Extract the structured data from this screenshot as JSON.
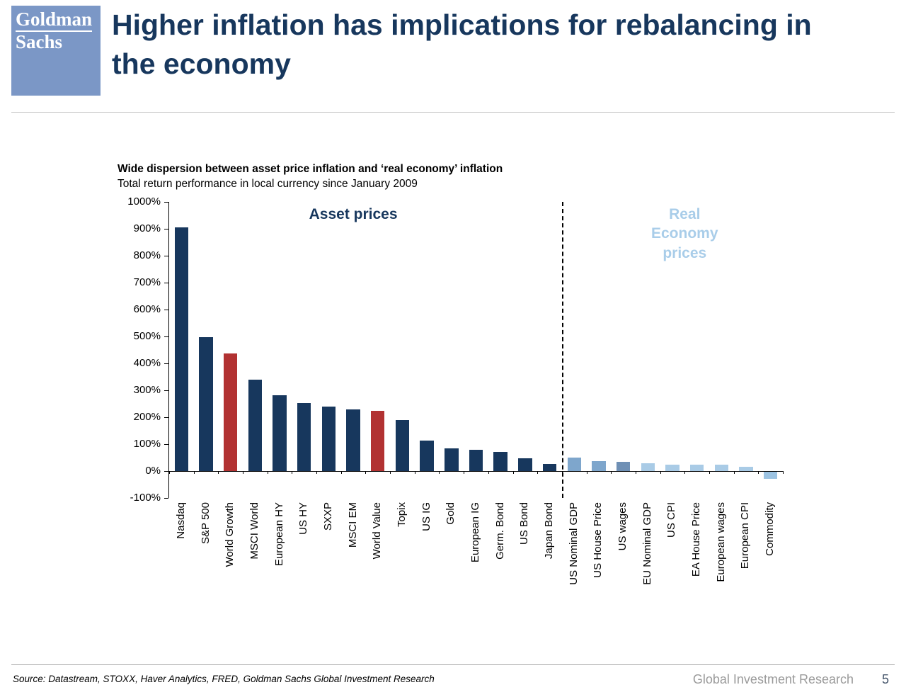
{
  "header": {
    "logo_line1": "Goldman",
    "logo_line2": "Sachs",
    "title": "Higher inflation has implications for rebalancing in the economy"
  },
  "chart_data": {
    "type": "bar",
    "title": "Wide dispersion between asset price inflation and ‘real economy’ inflation",
    "subtitle": "Total return performance in local currency since January 2009",
    "ylim": [
      -100,
      1000
    ],
    "ytick_step": 100,
    "ytick_suffix": "%",
    "grid": false,
    "asset_group_count": 16,
    "group_labels": {
      "assets": "Asset prices",
      "real": "Real Economy\nprices"
    },
    "categories": [
      "Nasdaq",
      "S&P 500",
      "World Growth",
      "MSCI World",
      "European HY",
      "US HY",
      "SXXP",
      "MSCI EM",
      "World Value",
      "Topix",
      "US IG",
      "Gold",
      "European IG",
      "Germ. Bond",
      "US Bond",
      "Japan Bond",
      "US Nominal GDP",
      "US House Price",
      "US wages",
      "EU Nominal GDP",
      "US CPI",
      "EA House Price",
      "European wages",
      "European CPI",
      "Commodity"
    ],
    "values": [
      905,
      497,
      438,
      340,
      281,
      252,
      240,
      228,
      224,
      190,
      112,
      83,
      78,
      72,
      48,
      27,
      50,
      38,
      33,
      28,
      25,
      25,
      25,
      15,
      -30
    ],
    "colors": [
      "#17375d",
      "#17375d",
      "#b23232",
      "#17375d",
      "#17375d",
      "#17375d",
      "#17375d",
      "#17375d",
      "#b23232",
      "#17375d",
      "#17375d",
      "#17375d",
      "#17375d",
      "#17375d",
      "#17375d",
      "#17375d",
      "#7ea6cc",
      "#7ea6cc",
      "#6f90b5",
      "#a9cbe6",
      "#a9cbe6",
      "#a9cbe6",
      "#a9cbe6",
      "#a9cbe6",
      "#9cc3e2"
    ],
    "accent_colors": {
      "navy": "#17375d",
      "red": "#b23232",
      "light_blue": "#a9cde9"
    }
  },
  "footer": {
    "source": "Source: Datastream, STOXX, Haver Analytics, FRED, Goldman Sachs Global Investment Research",
    "brand": "Global Investment Research",
    "page": "5"
  }
}
